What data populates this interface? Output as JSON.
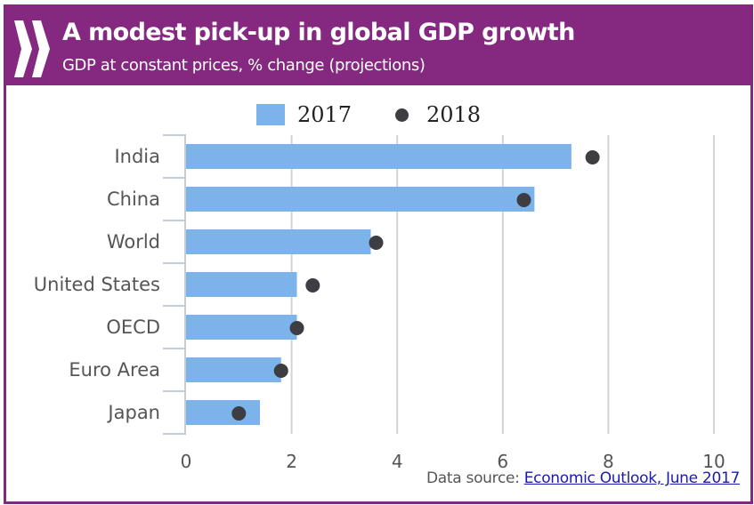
{
  "header": {
    "logo_icon": "oecd-chevrons-icon",
    "title": "A modest pick-up in global GDP growth",
    "subtitle": "GDP at constant prices, % change (projections)"
  },
  "legend": {
    "items": [
      {
        "label": "2017",
        "marker": "square",
        "color": "#7cb3ea"
      },
      {
        "label": "2018",
        "marker": "circle",
        "color": "#3d3d42"
      }
    ]
  },
  "footer": {
    "source_prefix": "Data source: ",
    "source_link": "Economic Outlook, June 2017"
  },
  "colors": {
    "brand": "#85287f",
    "bar_2017": "#7cb3ea",
    "dot_2018": "#3d3d42",
    "gridline": "#d0d4d8"
  },
  "chart_data": {
    "type": "bar",
    "orientation": "horizontal",
    "title": "A modest pick-up in global GDP growth",
    "subtitle": "GDP at constant prices, % change (projections)",
    "xlabel": "",
    "ylabel": "",
    "categories": [
      "India",
      "China",
      "World",
      "United States",
      "OECD",
      "Euro Area",
      "Japan"
    ],
    "series": [
      {
        "name": "2017",
        "type": "bar",
        "values": [
          7.3,
          6.6,
          3.5,
          2.1,
          2.1,
          1.8,
          1.4
        ]
      },
      {
        "name": "2018",
        "type": "scatter",
        "values": [
          7.7,
          6.4,
          3.6,
          2.4,
          2.1,
          1.8,
          1.0
        ]
      }
    ],
    "xlim": [
      0,
      10
    ],
    "xticks": [
      0,
      2,
      4,
      6,
      8,
      10
    ],
    "grid": "vertical",
    "legend_position": "top"
  }
}
